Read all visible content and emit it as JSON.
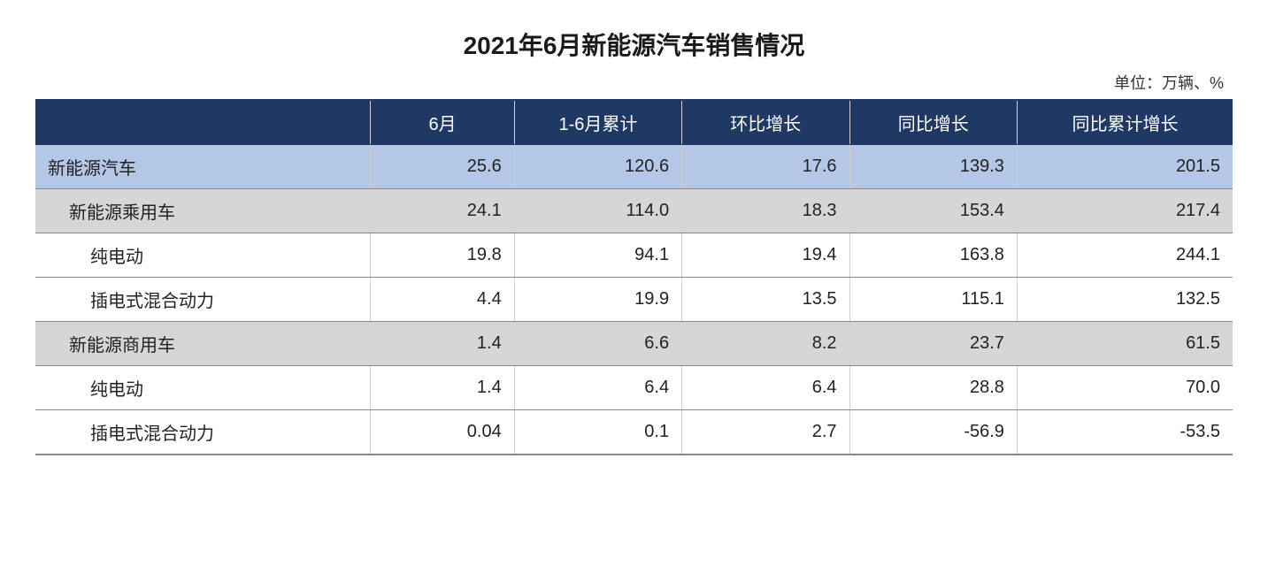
{
  "title": "2021年6月新能源汽车销售情况",
  "unit": "单位：万辆、%",
  "colors": {
    "header_bg": "#1f3864",
    "header_text": "#ffffff",
    "highlight_bg": "#b4c7e7",
    "sub_bg": "#d6d6d6",
    "border": "#888888",
    "text": "#222222"
  },
  "table": {
    "columns": [
      "",
      "6月",
      "1-6月累计",
      "环比增长",
      "同比增长",
      "同比累计增长"
    ],
    "rows": [
      {
        "label": "新能源汽车",
        "indent": 0,
        "style": "hl",
        "values": [
          "25.6",
          "120.6",
          "17.6",
          "139.3",
          "201.5"
        ]
      },
      {
        "label": "新能源乘用车",
        "indent": 1,
        "style": "sub",
        "values": [
          "24.1",
          "114.0",
          "18.3",
          "153.4",
          "217.4"
        ]
      },
      {
        "label": "纯电动",
        "indent": 2,
        "style": "plain",
        "values": [
          "19.8",
          "94.1",
          "19.4",
          "163.8",
          "244.1"
        ]
      },
      {
        "label": "插电式混合动力",
        "indent": 2,
        "style": "plain",
        "values": [
          "4.4",
          "19.9",
          "13.5",
          "115.1",
          "132.5"
        ]
      },
      {
        "label": "新能源商用车",
        "indent": 1,
        "style": "sub",
        "values": [
          "1.4",
          "6.6",
          "8.2",
          "23.7",
          "61.5"
        ]
      },
      {
        "label": "纯电动",
        "indent": 2,
        "style": "plain",
        "values": [
          "1.4",
          "6.4",
          "6.4",
          "28.8",
          "70.0"
        ]
      },
      {
        "label": "插电式混合动力",
        "indent": 2,
        "style": "plain",
        "values": [
          "0.04",
          "0.1",
          "2.7",
          "-56.9",
          "-53.5"
        ]
      }
    ]
  }
}
